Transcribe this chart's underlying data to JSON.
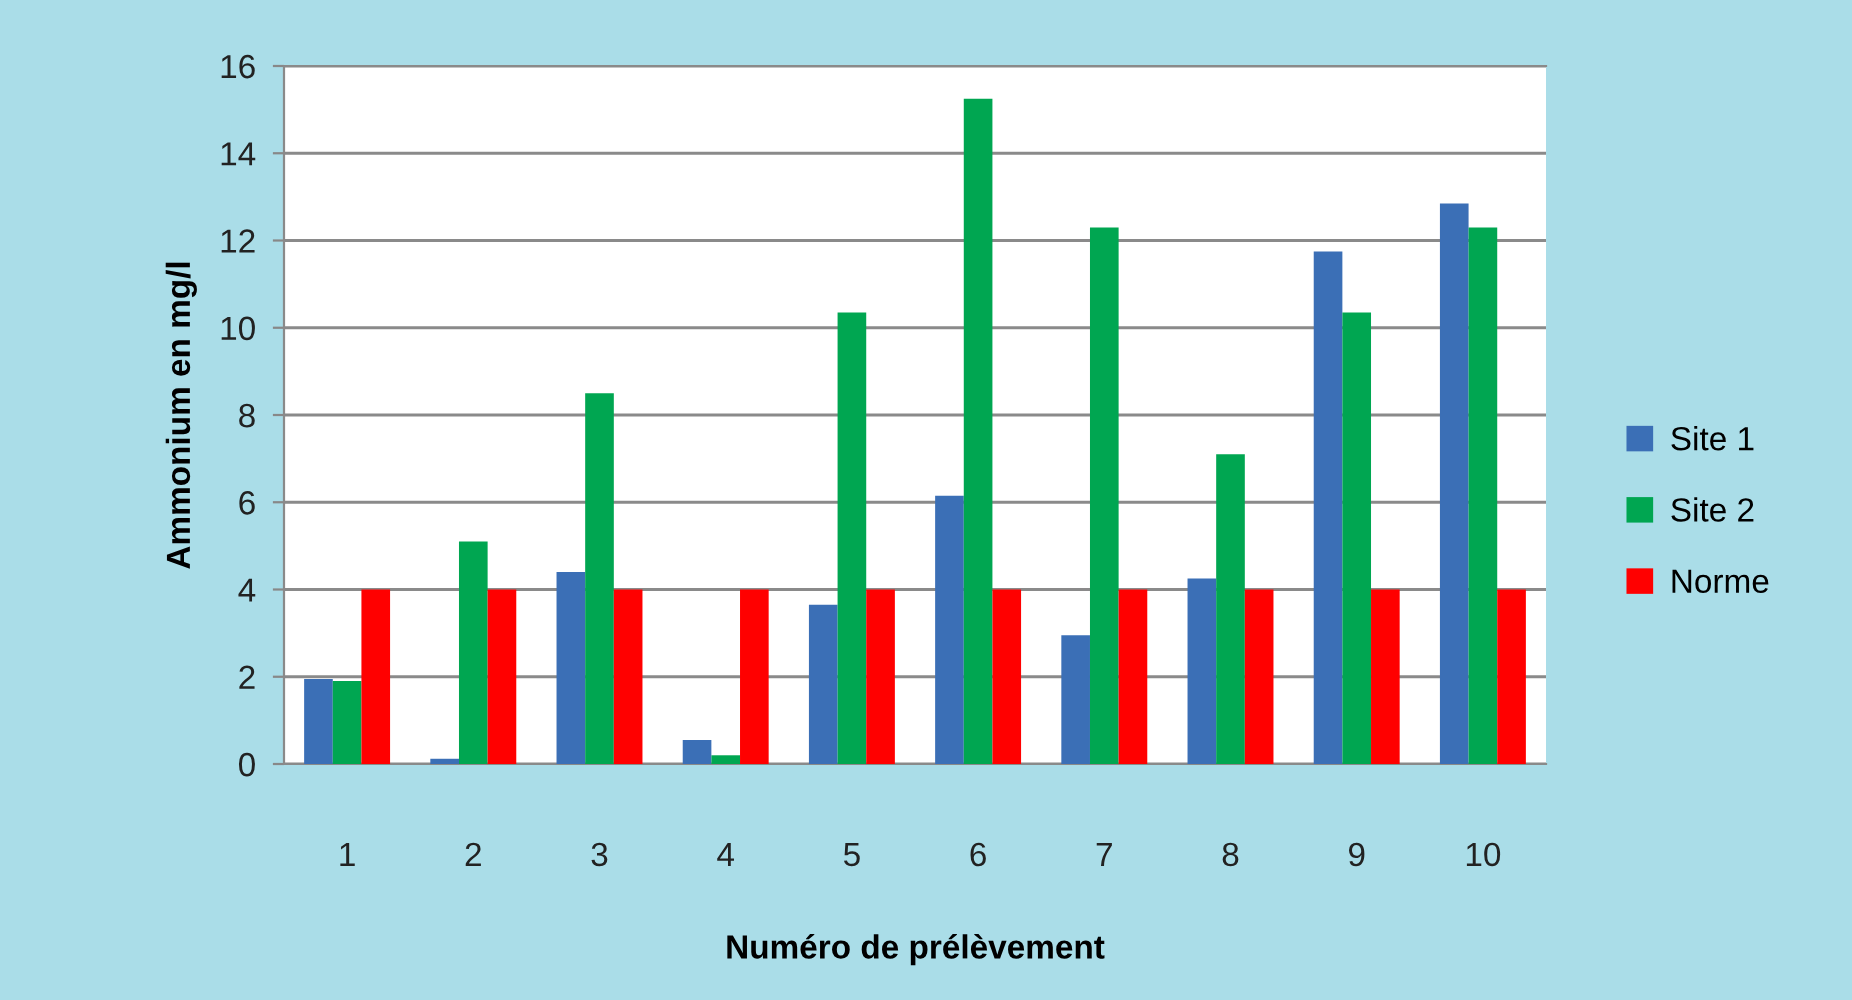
{
  "chart_data": {
    "type": "bar",
    "xlabel": "Numéro de prélèvement",
    "ylabel": "Ammonium en mg/l",
    "categories": [
      "1",
      "2",
      "3",
      "4",
      "5",
      "6",
      "7",
      "8",
      "9",
      "10"
    ],
    "series": [
      {
        "name": "Site 1",
        "color": "#3b6fb6",
        "values": [
          1.95,
          0.12,
          4.4,
          0.55,
          3.65,
          6.15,
          2.95,
          4.25,
          11.75,
          12.85
        ]
      },
      {
        "name": "Site 2",
        "color": "#00a651",
        "values": [
          1.9,
          5.1,
          8.5,
          0.2,
          10.35,
          15.25,
          12.3,
          7.1,
          10.35,
          12.3
        ]
      },
      {
        "name": "Norme",
        "color": "#ff0000",
        "values": [
          4,
          4,
          4,
          4,
          4,
          4,
          4,
          4,
          4,
          4
        ]
      }
    ],
    "ylim": [
      0,
      16
    ],
    "yticks": [
      0,
      2,
      4,
      6,
      8,
      10,
      12,
      14,
      16
    ],
    "grid": "y",
    "legend": "right"
  }
}
